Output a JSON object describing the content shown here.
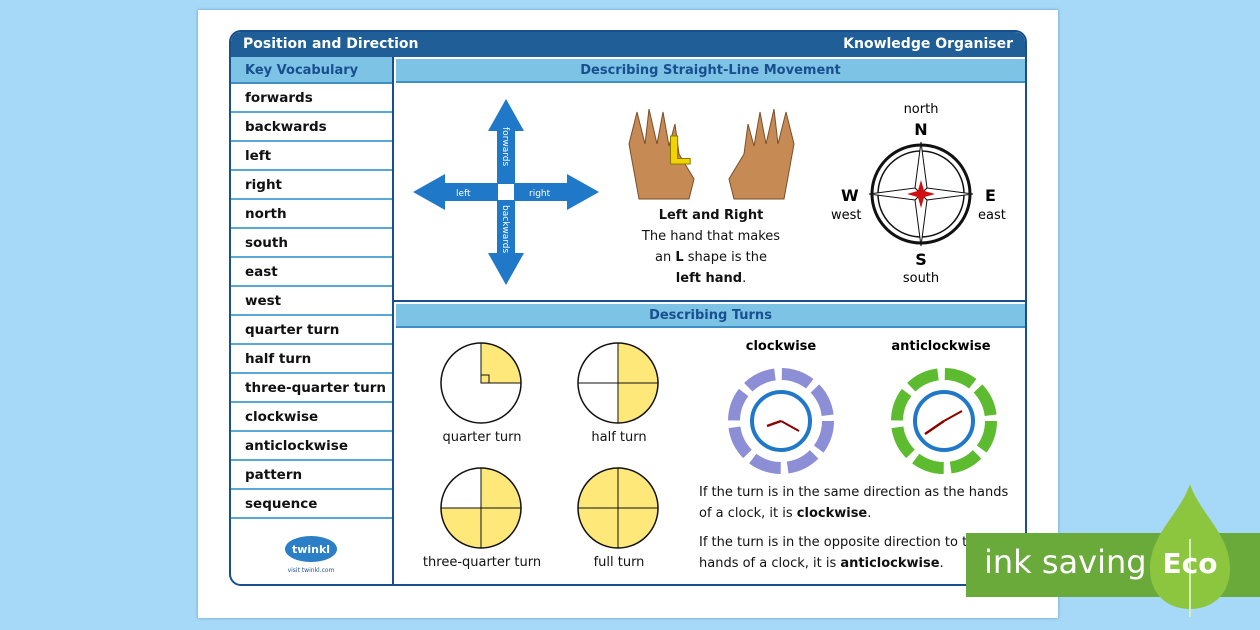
{
  "header": {
    "title": "Position and Direction",
    "subtitle": "Knowledge Organiser"
  },
  "vocabulary": {
    "title": "Key Vocabulary",
    "items": [
      "forwards",
      "backwards",
      "left",
      "right",
      "north",
      "south",
      "east",
      "west",
      "quarter turn",
      "half turn",
      "three-quarter turn",
      "clockwise",
      "anticlockwise",
      "pattern",
      "sequence"
    ],
    "logo": "twinkl",
    "logo_url": "visit twinkl.com"
  },
  "straight": {
    "title": "Describing Straight-Line Movement",
    "arrows": {
      "forwards": "forwards",
      "backwards": "backwards",
      "left": "left",
      "right": "right"
    },
    "hands": {
      "letter": "L",
      "heading": "Left and Right",
      "line1": "The hand that makes",
      "line2a": "an ",
      "line2b": "L",
      "line2c": " shape is the",
      "line3": "left hand",
      "line3end": "."
    },
    "compass": {
      "N": "N",
      "S": "S",
      "E": "E",
      "W": "W",
      "north": "north",
      "south": "south",
      "east": "east",
      "west": "west"
    }
  },
  "turns": {
    "title": "Describing Turns",
    "circles": [
      {
        "label": "quarter turn",
        "fraction": 0.25
      },
      {
        "label": "half turn",
        "fraction": 0.5
      },
      {
        "label": "three-quarter turn",
        "fraction": 0.75
      },
      {
        "label": "full turn",
        "fraction": 1
      }
    ],
    "clockwise": "clockwise",
    "anticlockwise": "anticlockwise",
    "text1a": "If the turn is in the same direction as the hands of a clock, it is ",
    "text1b": "clockwise",
    "text1c": ".",
    "text2a": "If the turn is in the opposite direction to the hands of a clock, it is ",
    "text2b": "anticlockwise",
    "text2c": "."
  },
  "badge": {
    "text": "ink saving",
    "eco": "Eco",
    "colors": {
      "green": "#6aaa3a",
      "leaf": "#8cc63f"
    }
  },
  "colors": {
    "dark_blue": "#1f5e96",
    "light_blue": "#7dc3e6",
    "arrow_blue": "#1f78c8",
    "yellow": "#ffe87a"
  }
}
